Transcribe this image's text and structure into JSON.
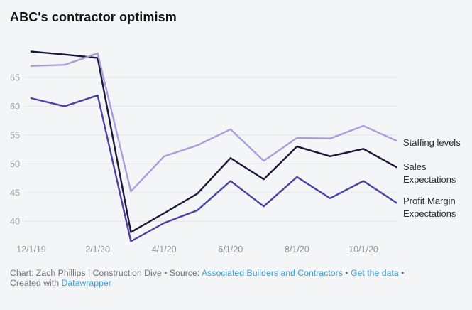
{
  "title": "ABC's contractor optimism",
  "chart_data": {
    "type": "line",
    "x": [
      "12/1/19",
      "1/1/20",
      "2/1/20",
      "3/1/20",
      "4/1/20",
      "5/1/20",
      "6/1/20",
      "7/1/20",
      "8/1/20",
      "9/1/20",
      "10/1/20",
      "11/1/20"
    ],
    "series": [
      {
        "name": "Staffing levels",
        "color": "#a5a0dd",
        "values": [
          67.0,
          67.2,
          69.2,
          45.2,
          51.3,
          53.2,
          56.0,
          50.5,
          54.5,
          54.4,
          56.6,
          54.0
        ]
      },
      {
        "name": "Sales Expectations",
        "color": "#1c1638",
        "values": [
          69.5,
          69.0,
          68.4,
          38.1,
          41.4,
          44.8,
          51.0,
          47.3,
          53.0,
          51.3,
          52.6,
          49.4
        ]
      },
      {
        "name": "Profit Margin Expectations",
        "color": "#4c42a4",
        "values": [
          61.4,
          60.0,
          61.9,
          36.5,
          39.7,
          41.9,
          47.0,
          42.6,
          47.7,
          44.0,
          47.0,
          43.2
        ]
      }
    ],
    "yticks": [
      65,
      60,
      55,
      50,
      45,
      40
    ],
    "xtick_indices": [
      0,
      2,
      4,
      6,
      8,
      10
    ],
    "ylim": [
      36,
      70
    ],
    "grid": "horizontal",
    "legend_position": "right-of-line-ends",
    "xlabel": "",
    "ylabel": ""
  },
  "footer": {
    "line1": {
      "credit": "Chart: Zach Phillips | Construction Dive ",
      "sep1": "• Source: ",
      "source_link": "Associated Builders and Contractors",
      "sep2": " • ",
      "data_link": "Get the data",
      "sep3": " •"
    },
    "line2": {
      "created": "Created with ",
      "tool_link": "Datawrapper"
    }
  },
  "colors": {
    "background": "#f4f5f7",
    "gridline": "#e2e3e7",
    "ytick": "#9ba0a6",
    "xtick": "#8c9095",
    "title": "#151515",
    "series_label": "#2e2e2e",
    "footer_text": "#707379",
    "link": "#3aa0d8"
  }
}
